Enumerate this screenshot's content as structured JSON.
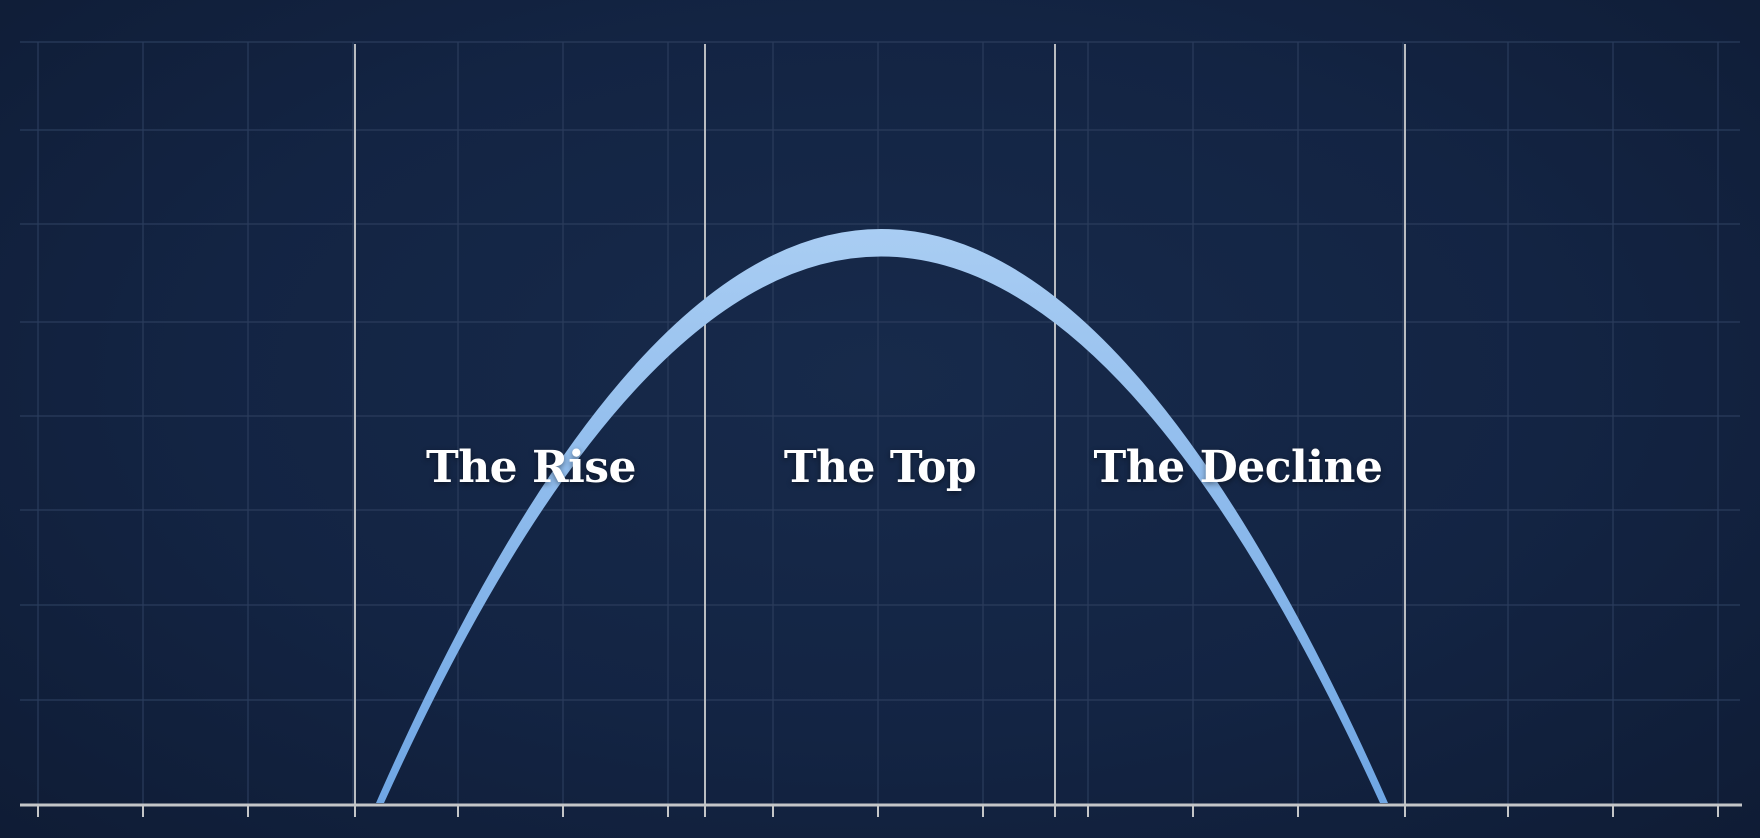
{
  "phases": [
    {
      "label": "The Rise"
    },
    {
      "label": "The Top"
    },
    {
      "label": "The Decline"
    }
  ],
  "colors": {
    "background": "#132443",
    "grid": "#2b3c5c",
    "dividers": "#b9bcc0",
    "axis": "#c4c6c8",
    "curve_light": "#a9cdf3",
    "curve_dark": "#6fa6e4"
  }
}
